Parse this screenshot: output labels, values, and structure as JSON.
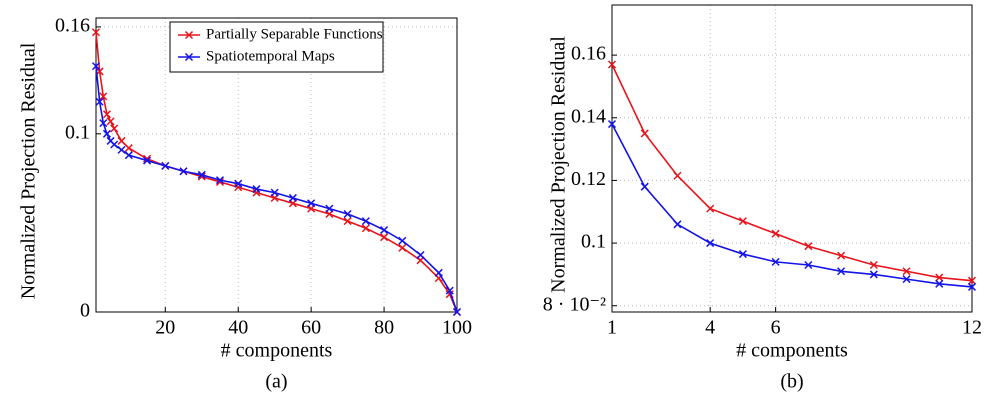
{
  "chart_data": [
    {
      "type": "line",
      "ylabel": "Normalized Projection Residual",
      "xlabel": "# components",
      "caption": "(a)",
      "xlim": [
        1,
        100
      ],
      "xticks": [
        20,
        40,
        60,
        80,
        100
      ],
      "ylim": [
        0,
        0.165
      ],
      "yticks": [
        0,
        0.1,
        0.16
      ],
      "grid": true,
      "legend": "top-right",
      "series": [
        {
          "name": "Partially Separable Functions",
          "color": "#e8141b",
          "x": [
            1,
            2,
            3,
            4,
            5,
            6,
            8,
            10,
            15,
            20,
            25,
            30,
            35,
            40,
            45,
            50,
            55,
            60,
            65,
            70,
            75,
            80,
            85,
            90,
            95,
            98,
            100
          ],
          "values": [
            0.157,
            0.135,
            0.121,
            0.111,
            0.107,
            0.103,
            0.096,
            0.092,
            0.086,
            0.082,
            0.079,
            0.076,
            0.073,
            0.07,
            0.067,
            0.064,
            0.061,
            0.058,
            0.055,
            0.051,
            0.047,
            0.042,
            0.036,
            0.029,
            0.019,
            0.01,
            0
          ]
        },
        {
          "name": "Spatiotemporal Maps",
          "color": "#1414e8",
          "x": [
            1,
            2,
            3,
            4,
            5,
            6,
            8,
            10,
            15,
            20,
            25,
            30,
            35,
            40,
            45,
            50,
            55,
            60,
            65,
            70,
            75,
            80,
            85,
            90,
            95,
            98,
            100
          ],
          "values": [
            0.138,
            0.118,
            0.106,
            0.1,
            0.096,
            0.094,
            0.091,
            0.088,
            0.085,
            0.082,
            0.079,
            0.077,
            0.074,
            0.072,
            0.069,
            0.067,
            0.064,
            0.061,
            0.058,
            0.055,
            0.051,
            0.046,
            0.04,
            0.032,
            0.022,
            0.012,
            0
          ]
        }
      ]
    },
    {
      "type": "line",
      "ylabel": "Normalized Projection Residual",
      "xlabel": "# components",
      "caption": "(b)",
      "xlim": [
        1,
        12
      ],
      "xticks": [
        1,
        4,
        6,
        12
      ],
      "ylim": [
        0.078,
        0.176
      ],
      "yticks": [
        {
          "value": 0.08,
          "label": "8 · 10⁻²"
        },
        0.1,
        0.12,
        0.14,
        0.16
      ],
      "grid": true,
      "series": [
        {
          "color": "#e8141b",
          "x": [
            1,
            2,
            3,
            4,
            5,
            6,
            7,
            8,
            9,
            10,
            11,
            12
          ],
          "values": [
            0.157,
            0.135,
            0.1215,
            0.111,
            0.107,
            0.103,
            0.099,
            0.096,
            0.093,
            0.091,
            0.089,
            0.088
          ]
        },
        {
          "color": "#1414e8",
          "x": [
            1,
            2,
            3,
            4,
            5,
            6,
            7,
            8,
            9,
            10,
            11,
            12
          ],
          "values": [
            0.138,
            0.118,
            0.106,
            0.1,
            0.0965,
            0.094,
            0.093,
            0.091,
            0.09,
            0.0885,
            0.087,
            0.086
          ]
        }
      ]
    }
  ]
}
